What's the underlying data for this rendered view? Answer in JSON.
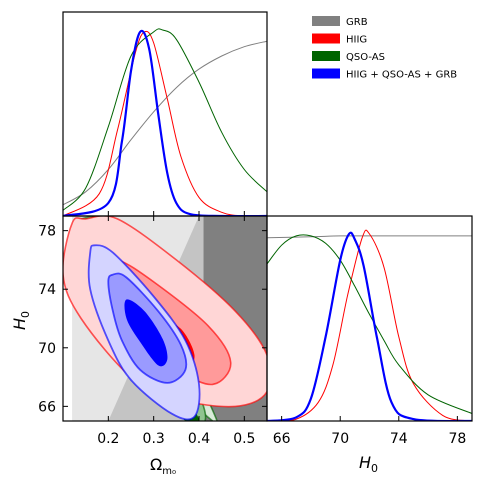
{
  "chart_data": {
    "type": "triangle",
    "legend": {
      "placement": "top-right",
      "entries": [
        {
          "label": "GRB",
          "color": "#808080"
        },
        {
          "label": "HIIG",
          "color": "#ff0000"
        },
        {
          "label": "QSO-AS",
          "color": "#006400"
        },
        {
          "label": "HIIG + QSO-AS + GRB",
          "color": "#0000ff"
        }
      ]
    },
    "params": {
      "omega": {
        "xlabel": "Ω",
        "xlabel_sub": "m₀",
        "range": [
          0.1,
          0.55
        ],
        "ticks": [
          0.2,
          0.3,
          0.4,
          0.5
        ],
        "tick_labels": [
          "0.2",
          "0.3",
          "0.4",
          "0.5"
        ]
      },
      "H0": {
        "label": "H",
        "label_sub": "0",
        "range": [
          65,
          79
        ],
        "ticks": [
          66,
          70,
          74,
          78
        ],
        "tick_labels": [
          "66",
          "70",
          "74",
          "78"
        ]
      }
    },
    "marginal_omega": [
      {
        "name": "GRB",
        "color": "#808080",
        "x": [
          0.1,
          0.15,
          0.2,
          0.25,
          0.3,
          0.35,
          0.4,
          0.45,
          0.5,
          0.55
        ],
        "y": [
          0.06,
          0.13,
          0.25,
          0.41,
          0.56,
          0.69,
          0.79,
          0.86,
          0.91,
          0.94
        ]
      },
      {
        "name": "HIIG",
        "color": "#ff0000",
        "x": [
          0.1,
          0.18,
          0.22,
          0.26,
          0.28,
          0.3,
          0.33,
          0.36,
          0.4,
          0.45,
          0.5,
          0.55
        ],
        "y": [
          0,
          0.12,
          0.46,
          0.88,
          0.99,
          0.93,
          0.63,
          0.32,
          0.1,
          0.02,
          0,
          0
        ]
      },
      {
        "name": "QSO-AS",
        "color": "#006400",
        "x": [
          0.1,
          0.15,
          0.2,
          0.25,
          0.3,
          0.32,
          0.35,
          0.4,
          0.45,
          0.5,
          0.55
        ],
        "y": [
          0.03,
          0.15,
          0.48,
          0.86,
          0.99,
          1.0,
          0.95,
          0.72,
          0.45,
          0.25,
          0.13
        ]
      },
      {
        "name": "HIIG + QSO-AS + GRB",
        "color": "#0000ff",
        "x": [
          0.1,
          0.2,
          0.23,
          0.25,
          0.27,
          0.29,
          0.31,
          0.33,
          0.35,
          0.38,
          0.45,
          0.55
        ],
        "y": [
          0,
          0.07,
          0.4,
          0.78,
          0.99,
          0.9,
          0.55,
          0.23,
          0.07,
          0.01,
          0,
          0
        ]
      }
    ],
    "marginal_H0": [
      {
        "name": "GRB",
        "color": "#808080",
        "x": [
          65,
          68,
          70,
          72,
          74,
          76,
          79
        ],
        "y": [
          0.98,
          0.985,
          0.99,
          0.99,
          0.99,
          0.99,
          0.99
        ]
      },
      {
        "name": "HIIG",
        "color": "#ff0000",
        "x": [
          65,
          67,
          68.5,
          69.5,
          70.5,
          71.5,
          72,
          73,
          74,
          75,
          77,
          79
        ],
        "y": [
          0,
          0.01,
          0.1,
          0.3,
          0.67,
          0.98,
          1.0,
          0.82,
          0.45,
          0.2,
          0.03,
          0
        ]
      },
      {
        "name": "QSO-AS",
        "color": "#006400",
        "x": [
          65,
          66,
          67,
          68,
          69,
          70,
          71,
          72,
          73,
          74,
          76,
          79
        ],
        "y": [
          0.84,
          0.94,
          0.99,
          0.99,
          0.95,
          0.86,
          0.72,
          0.57,
          0.43,
          0.3,
          0.14,
          0.04
        ]
      },
      {
        "name": "HIIG + QSO-AS + GRB",
        "color": "#0000ff",
        "x": [
          65,
          67,
          68,
          69,
          70,
          70.6,
          71,
          71.6,
          72.5,
          73.5,
          75,
          79
        ],
        "y": [
          0,
          0.02,
          0.12,
          0.45,
          0.86,
          1.0,
          0.97,
          0.83,
          0.45,
          0.1,
          0.01,
          0
        ]
      }
    ],
    "contours_2d": [
      {
        "name": "GRB",
        "color": "#808080",
        "levels": [
          {
            "level": "outer",
            "omega": [
              0.12,
              0.55,
              0.55,
              0.12
            ],
            "H0": [
              65,
              65,
              79,
              79
            ]
          },
          {
            "level": "inner",
            "omega": [
              0.2,
              0.55,
              0.55,
              0.4,
              0.2
            ],
            "H0": [
              65,
              65,
              79,
              79,
              65
            ]
          }
        ]
      },
      {
        "name": "QSO-AS",
        "color": "#006400",
        "levels": [
          {
            "level": "outer",
            "omega": [
              0.14,
              0.18,
              0.22,
              0.3,
              0.38,
              0.44,
              0.43,
              0.38,
              0.3,
              0.22,
              0.15,
              0.13
            ],
            "H0": [
              78.8,
              78.8,
              77,
              73.5,
              69,
              65,
              65,
              66.5,
              70,
              73.5,
              77,
              78.5
            ]
          },
          {
            "level": "inner",
            "omega": [
              0.16,
              0.19,
              0.26,
              0.34,
              0.41,
              0.4,
              0.34,
              0.25,
              0.17,
              0.15
            ],
            "H0": [
              78.8,
              78.8,
              75,
              71,
              66,
              65,
              68,
              72,
              76,
              78.5
            ]
          }
        ]
      },
      {
        "name": "HIIG",
        "color": "#ff0000",
        "levels": [
          {
            "level": "outer",
            "omega": [
              0.15,
              0.22,
              0.35,
              0.48,
              0.55,
              0.55,
              0.48,
              0.35,
              0.25,
              0.14,
              0.1,
              0.12
            ],
            "H0": [
              78.8,
              78.8,
              76,
              72.5,
              69.5,
              67,
              66,
              66.5,
              68,
              72,
              75,
              78.5
            ]
          },
          {
            "level": "inner",
            "omega": [
              0.22,
              0.3,
              0.42,
              0.47,
              0.43,
              0.35,
              0.25,
              0.19,
              0.18
            ],
            "H0": [
              76,
              74.5,
              71.5,
              69,
              67.5,
              68.5,
              70.5,
              73,
              75.5
            ]
          }
        ]
      },
      {
        "name": "HIIG + QSO-AS + GRB",
        "color": "#0000ff",
        "levels": [
          {
            "level": "outer",
            "omega": [
              0.17,
              0.21,
              0.3,
              0.37,
              0.4,
              0.39,
              0.34,
              0.25,
              0.2,
              0.16,
              0.16
            ],
            "H0": [
              77,
              76.5,
              73.5,
              70.5,
              67.5,
              65.3,
              65.5,
              67.8,
              70.5,
              74,
              76.5
            ]
          },
          {
            "level": "inner",
            "omega": [
              0.21,
              0.24,
              0.31,
              0.36,
              0.37,
              0.33,
              0.27,
              0.23,
              0.21,
              0.2
            ],
            "H0": [
              75,
              74.8,
              72.5,
              70.2,
              68.5,
              67.6,
              68.5,
              70.5,
              72.5,
              74.5
            ]
          }
        ]
      }
    ]
  }
}
